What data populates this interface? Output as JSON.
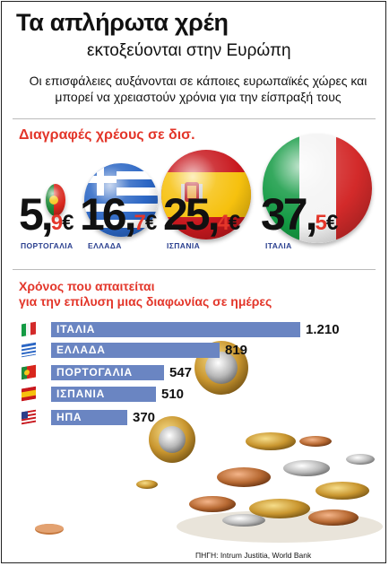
{
  "header": {
    "title": "Τα απλήρωτα χρέη",
    "subtitle": "εκτοξεύονται στην Ευρώπη",
    "lede": "Οι επισφάλειες αυξάνονται σε κάποιες ευρωπαϊκές χώρες και μπορεί να χρειαστούν χρόνια για την είσπραξή τους"
  },
  "chart_data": [
    {
      "type": "bar",
      "title": "Διαγραφές χρέους σε δισ.",
      "unit": "€",
      "categories": [
        "ΠΟΡΤΟΓΑΛΙΑ",
        "ΕΛΛΑΔΑ",
        "ΙΣΠΑΝΙΑ",
        "ΙΤΑΛΙΑ"
      ],
      "values": [
        5.9,
        16.7,
        25.4,
        37.5
      ],
      "display": [
        {
          "int": "5,",
          "dec": "9",
          "cur": "€"
        },
        {
          "int": "16,",
          "dec": "7",
          "cur": "€"
        },
        {
          "int": "25,",
          "dec": "4",
          "cur": "€"
        },
        {
          "int": "37,",
          "dec": "5",
          "cur": "€"
        }
      ]
    },
    {
      "type": "bar",
      "title": "Χρόνος που απαιτείται για την επίλυση μιας διαφωνίας σε ημέρες",
      "categories": [
        "ΙΤΑΛΙΑ",
        "ΕΛΛΑΔΑ",
        "ΠΟΡΤΟΓΑΛΙΑ",
        "ΙΣΠΑΝΙΑ",
        "ΗΠΑ"
      ],
      "values": [
        1210,
        819,
        547,
        510,
        370
      ],
      "labels": [
        "1.210",
        "819",
        "547",
        "510",
        "370"
      ]
    }
  ],
  "section1": {
    "title": "Διαγραφές χρέους σε δισ."
  },
  "section2": {
    "title_line1": "Χρόνος που απαιτείται",
    "title_line2": "για την επίλυση μιας διαφωνίας σε ημέρες"
  },
  "flags": [
    "italy-flag",
    "greece-flag",
    "portugal-flag",
    "spain-flag",
    "usa-flag"
  ],
  "colors": {
    "accent": "#e3362a",
    "bar": "#6a85c2",
    "country_label": "#2a3f8f"
  },
  "footer": {
    "source": "ΠΗΓΗ: Intrum Justitia, World Bank"
  }
}
